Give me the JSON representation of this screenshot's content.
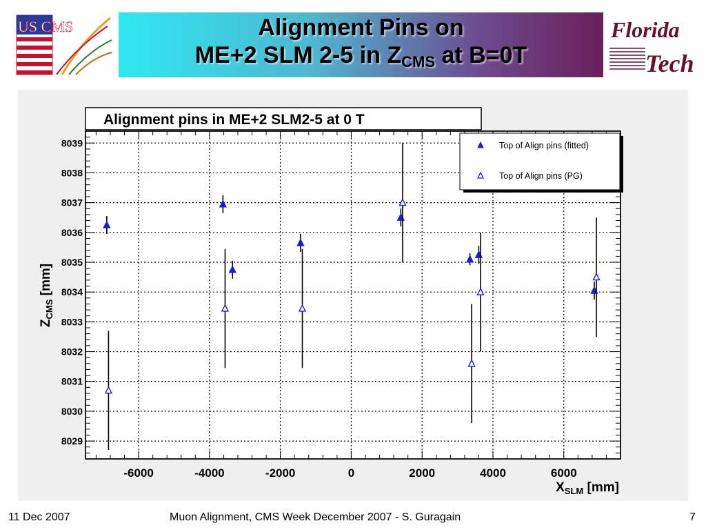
{
  "slide": {
    "title_line1": "Alignment Pins on",
    "title_line2_pre": "ME+2 SLM 2-5 in Z",
    "title_line2_sub": "CMS",
    "title_line2_post": " at B=0T",
    "logo_left_text": "US CMS",
    "logo_right_line1": "Florida",
    "logo_right_line2": "Tech"
  },
  "footer": {
    "date": "11 Dec 2007",
    "center": "Muon Alignment, CMS Week December 2007  - S. Guragain",
    "page": "7"
  },
  "chart_data": {
    "type": "scatter",
    "title": "Alignment pins in ME+2 SLM2-5 at 0 T",
    "xlabel_main": "X",
    "xlabel_sub": "SLM",
    "xlabel_unit": " [mm]",
    "ylabel_main": "Z",
    "ylabel_sub": "CMS",
    "ylabel_unit": " [mm]",
    "xlim": [
      -7500,
      7600
    ],
    "ylim": [
      8028.4,
      8039.4
    ],
    "x_ticks": [
      -6000,
      -4000,
      -2000,
      0,
      2000,
      4000,
      6000
    ],
    "x_tick_labels": [
      "-6000",
      "-4000",
      "-2000",
      "0",
      "2000",
      "4000",
      "6000"
    ],
    "y_ticks": [
      8029,
      8030,
      8031,
      8032,
      8033,
      8034,
      8035,
      8036,
      8037,
      8038,
      8039
    ],
    "y_tick_labels": [
      "8029",
      "8030",
      "8031",
      "8032",
      "8033",
      "8034",
      "8035",
      "8036",
      "8037",
      "8038",
      "8039"
    ],
    "grid": true,
    "legend_position": "top-right",
    "series": [
      {
        "name": "Top of Align pins (fitted)",
        "marker": "filled-triangle",
        "color": "#1a1adb",
        "points": [
          {
            "x": -6900,
            "y": 8036.25,
            "err": 0.3
          },
          {
            "x": -3620,
            "y": 8036.95,
            "err": 0.3
          },
          {
            "x": -3350,
            "y": 8034.75,
            "err": 0.3
          },
          {
            "x": -1430,
            "y": 8035.65,
            "err": 0.3
          },
          {
            "x": 1400,
            "y": 8036.5,
            "err": 0.3
          },
          {
            "x": 3350,
            "y": 8035.1,
            "err": 0.2
          },
          {
            "x": 3600,
            "y": 8035.25,
            "err": 0.3
          },
          {
            "x": 6860,
            "y": 8034.05,
            "err": 0.3
          }
        ]
      },
      {
        "name": "Top of Align pins (PG)",
        "marker": "open-triangle",
        "color": "#1a1adb",
        "points": [
          {
            "x": -6850,
            "y": 8030.7,
            "err": 2.0
          },
          {
            "x": -3560,
            "y": 8033.45,
            "err": 2.0
          },
          {
            "x": -1380,
            "y": 8033.45,
            "err": 2.0
          },
          {
            "x": 1450,
            "y": 8037.0,
            "err": 2.0
          },
          {
            "x": 3400,
            "y": 8031.6,
            "err": 2.0
          },
          {
            "x": 3650,
            "y": 8034.0,
            "err": 2.0
          },
          {
            "x": 6920,
            "y": 8034.5,
            "err": 2.0
          }
        ]
      }
    ]
  }
}
